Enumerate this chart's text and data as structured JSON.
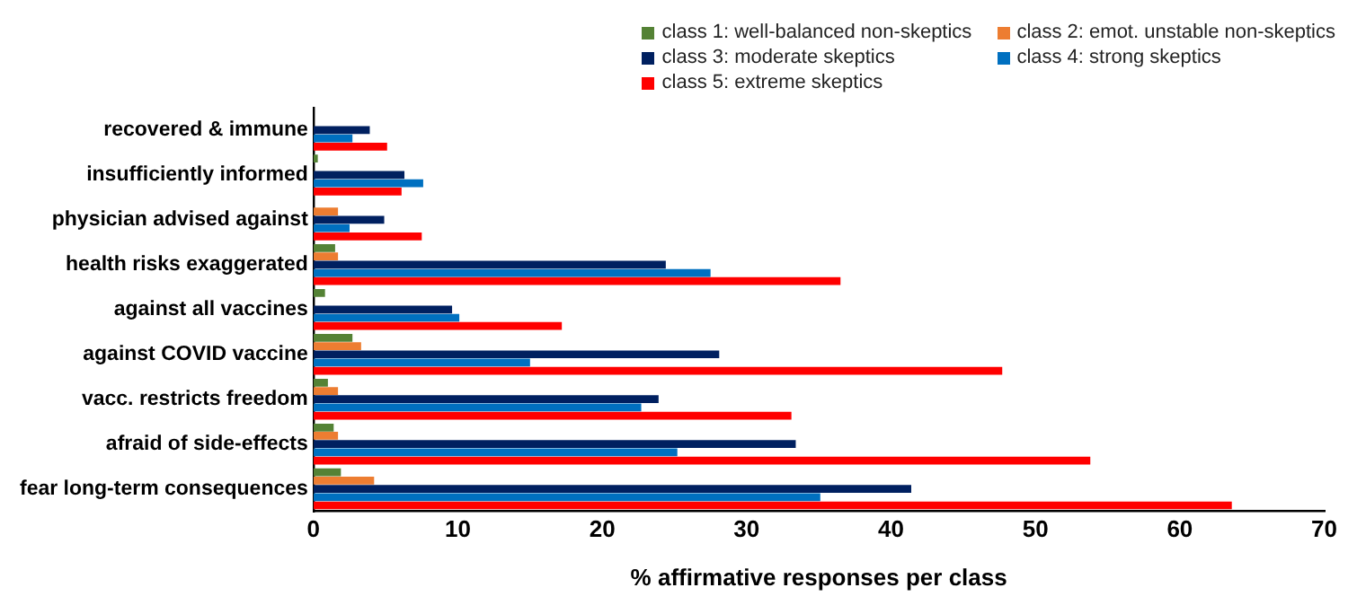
{
  "chart_data": {
    "type": "bar",
    "orientation": "horizontal",
    "xlabel": "% affirmative responses per class",
    "categories": [
      "recovered & immune",
      "insufficiently informed",
      "physician advised against",
      "health risks exaggerated",
      "against all vaccines",
      "against COVID vaccine",
      "vacc. restricts freedom",
      "afraid of side-effects",
      "fear long-term consequences"
    ],
    "series": [
      {
        "name": "class 1: well-balanced non-skeptics",
        "color": "#548235",
        "values": [
          0,
          0.3,
          0,
          1.5,
          0.8,
          2.7,
          1.0,
          1.4,
          1.9
        ]
      },
      {
        "name": "class 2: emot. unstable non-skeptics",
        "color": "#ed7d31",
        "values": [
          0,
          0,
          1.7,
          1.7,
          0,
          3.3,
          1.7,
          1.7,
          4.2
        ]
      },
      {
        "name": "class 3: moderate skeptics",
        "color": "#002060",
        "values": [
          3.9,
          6.3,
          4.9,
          24.4,
          9.6,
          28.1,
          23.9,
          33.4,
          41.4
        ]
      },
      {
        "name": "class 4: strong skeptics",
        "color": "#0070c0",
        "values": [
          2.7,
          7.6,
          2.5,
          27.5,
          10.1,
          15.0,
          22.7,
          25.2,
          35.1
        ]
      },
      {
        "name": "class 5: extreme skeptics",
        "color": "#ff0000",
        "values": [
          5.1,
          6.1,
          7.5,
          36.5,
          17.2,
          47.7,
          33.1,
          53.8,
          63.6
        ]
      }
    ],
    "xlim": [
      0,
      70
    ],
    "xticks": [
      0,
      10,
      20,
      30,
      40,
      50,
      60,
      70
    ],
    "grid": false,
    "legend": "top right"
  }
}
